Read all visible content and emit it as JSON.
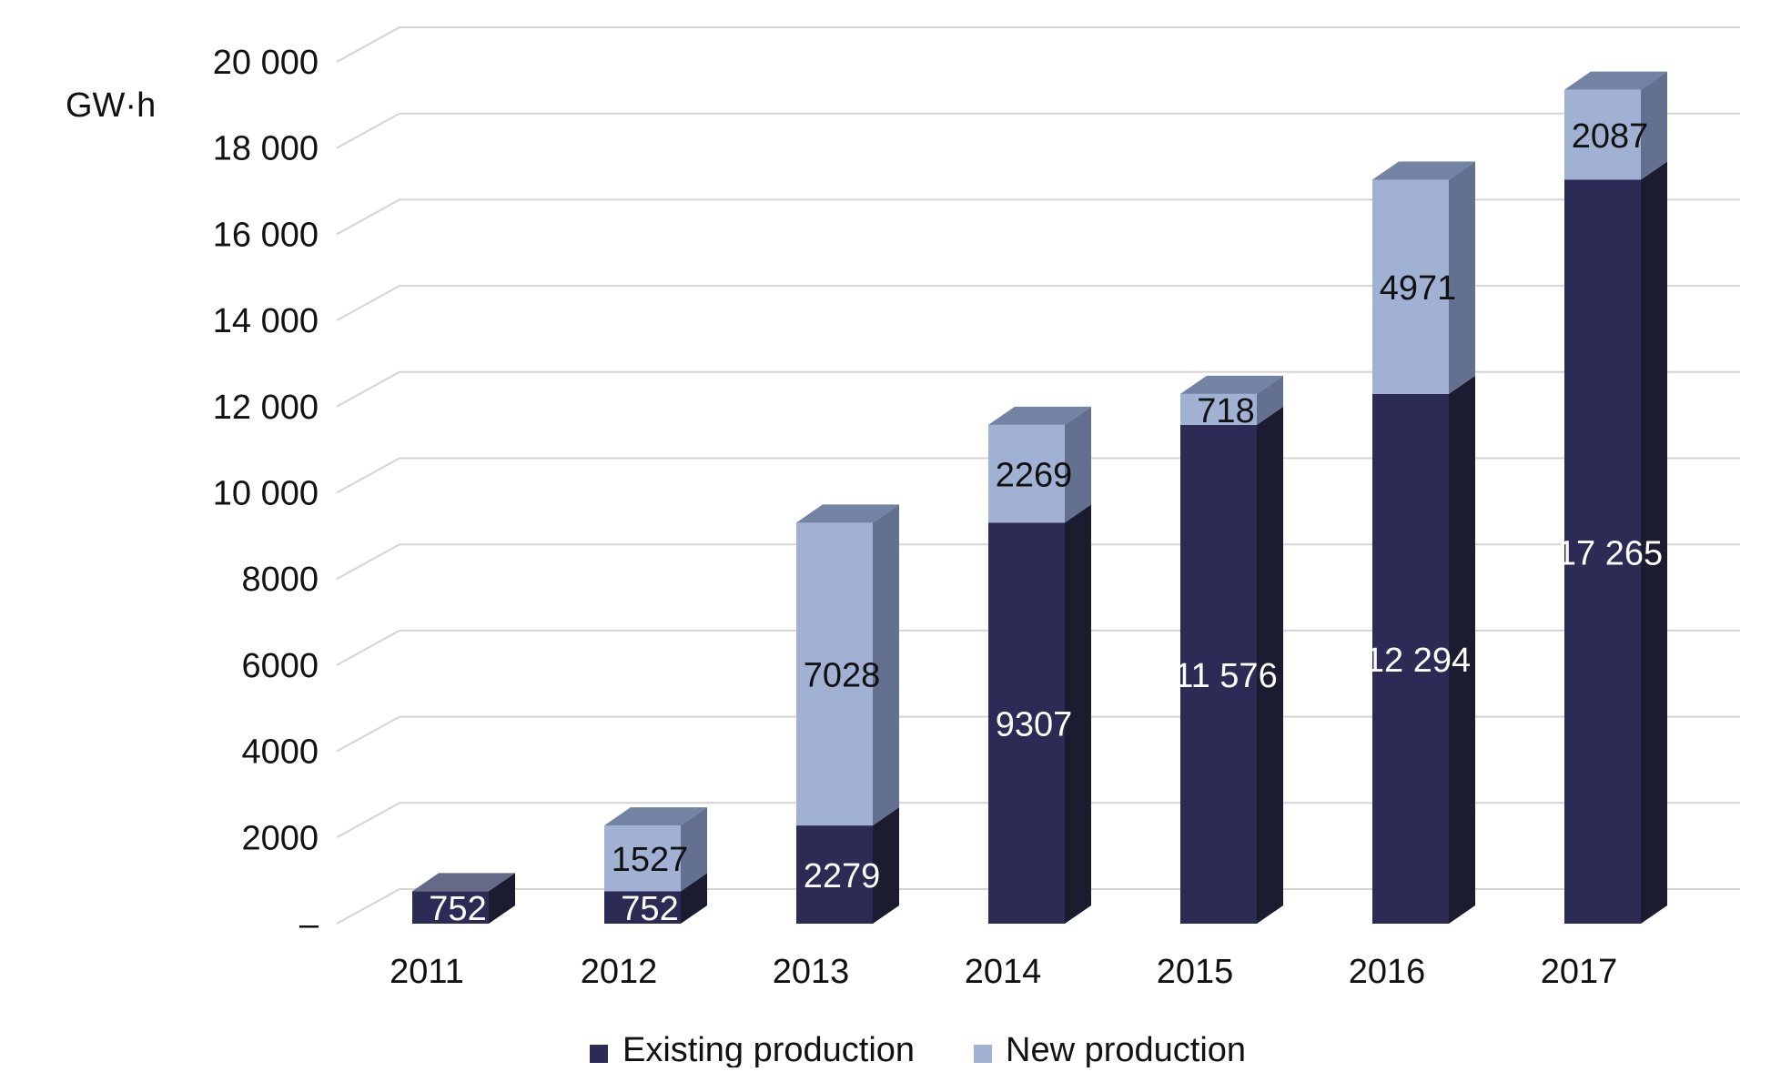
{
  "chart_data": {
    "type": "bar",
    "stacked": true,
    "ylabel": "GW·h",
    "ylim": [
      0,
      20000
    ],
    "y_ticks": [
      {
        "value": 0,
        "label": "–"
      },
      {
        "value": 2000,
        "label": "2000"
      },
      {
        "value": 4000,
        "label": "4000"
      },
      {
        "value": 6000,
        "label": "6000"
      },
      {
        "value": 8000,
        "label": "8000"
      },
      {
        "value": 10000,
        "label": "10 000"
      },
      {
        "value": 12000,
        "label": "12 000"
      },
      {
        "value": 14000,
        "label": "14 000"
      },
      {
        "value": 16000,
        "label": "16 000"
      },
      {
        "value": 18000,
        "label": "18 000"
      },
      {
        "value": 20000,
        "label": "20 000"
      }
    ],
    "categories": [
      "2011",
      "2012",
      "2013",
      "2014",
      "2015",
      "2016",
      "2017"
    ],
    "series": [
      {
        "name": "Existing production",
        "color": "#2b2b55",
        "side_color": "#1c1c30",
        "top_color": "#656a88",
        "label_color": "#ffffff",
        "values": [
          752,
          752,
          2279,
          9307,
          11576,
          12294,
          17265
        ],
        "labels": [
          "752",
          "752",
          "2279",
          "9307",
          "11 576",
          "12 294",
          "17 265"
        ]
      },
      {
        "name": "New production",
        "color": "#a1b1d4",
        "side_color": "#64708f",
        "top_color": "#7283a3",
        "label_color": "#111111",
        "values": [
          0,
          1527,
          7028,
          2269,
          718,
          4971,
          2087
        ],
        "labels": [
          "",
          "1527",
          "7028",
          "2269",
          "718",
          "4971",
          "2087"
        ]
      }
    ],
    "legend": {
      "position": "bottom",
      "entries": [
        "Existing production",
        "New production"
      ]
    },
    "grid": true,
    "gridlines": "horizontal, 3D perspective wall"
  }
}
